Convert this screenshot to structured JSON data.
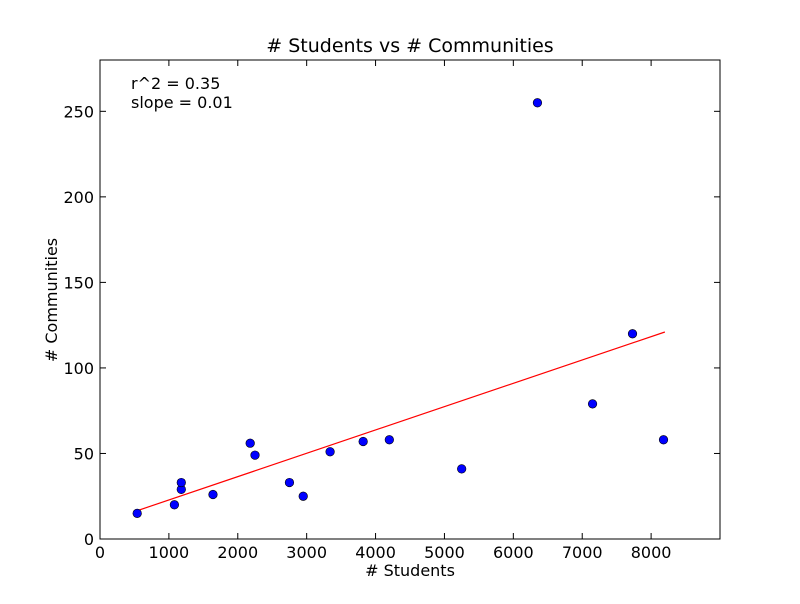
{
  "chart_data": {
    "type": "scatter",
    "title": "# Students vs # Communities",
    "xlabel": "# Students",
    "ylabel": "# Communities",
    "xlim": [
      0,
      9000
    ],
    "ylim": [
      0,
      280
    ],
    "xticks": [
      0,
      1000,
      2000,
      3000,
      4000,
      5000,
      6000,
      7000,
      8000
    ],
    "yticks": [
      0,
      50,
      100,
      150,
      200,
      250
    ],
    "grid": false,
    "annotations": [
      "r^2 = 0.35",
      "slope = 0.01"
    ],
    "points": [
      {
        "x": 540,
        "y": 15
      },
      {
        "x": 1080,
        "y": 20
      },
      {
        "x": 1180,
        "y": 29
      },
      {
        "x": 1180,
        "y": 33
      },
      {
        "x": 1640,
        "y": 26
      },
      {
        "x": 2180,
        "y": 56
      },
      {
        "x": 2250,
        "y": 49
      },
      {
        "x": 2750,
        "y": 33
      },
      {
        "x": 2950,
        "y": 25
      },
      {
        "x": 3340,
        "y": 51
      },
      {
        "x": 3820,
        "y": 57
      },
      {
        "x": 4200,
        "y": 58
      },
      {
        "x": 5250,
        "y": 41
      },
      {
        "x": 6350,
        "y": 255
      },
      {
        "x": 7150,
        "y": 79
      },
      {
        "x": 7730,
        "y": 120
      },
      {
        "x": 8180,
        "y": 58
      }
    ],
    "fit_line": {
      "x": [
        500,
        8200
      ],
      "y": [
        16,
        121
      ]
    },
    "colors": {
      "points": "#0000ff",
      "point_edge": "#000000",
      "fit_line": "#ff0000",
      "axes": "#000000"
    }
  }
}
